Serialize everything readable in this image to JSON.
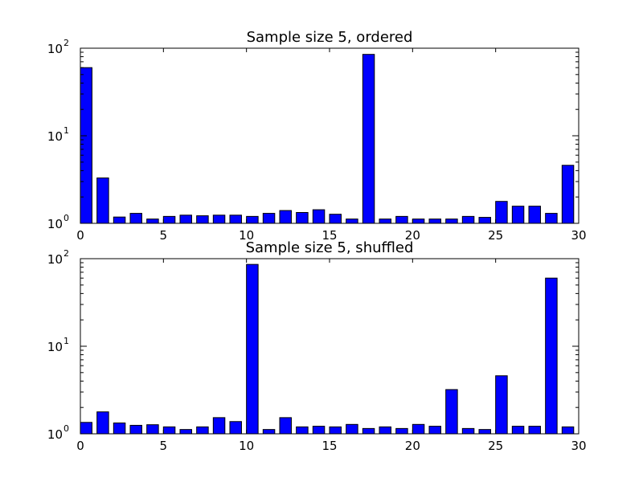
{
  "chart_data": [
    {
      "type": "bar",
      "title": "Sample size 5, ordered",
      "xlabel": "",
      "ylabel": "",
      "yscale": "log",
      "xlim": [
        0,
        30
      ],
      "ylim": [
        1,
        100
      ],
      "xticks": [
        0,
        5,
        10,
        15,
        20,
        25,
        30
      ],
      "yticks": [
        {
          "base": "10",
          "exp": "0",
          "value": 1
        },
        {
          "base": "10",
          "exp": "1",
          "value": 10
        },
        {
          "base": "10",
          "exp": "2",
          "value": 100
        }
      ],
      "bar_width": 0.7,
      "bar_color": "#0000ff",
      "grid": false,
      "x": [
        0,
        1,
        2,
        3,
        4,
        5,
        6,
        7,
        8,
        9,
        10,
        11,
        12,
        13,
        14,
        15,
        16,
        17,
        18,
        19,
        20,
        21,
        22,
        23,
        24,
        25,
        26,
        27,
        28,
        29
      ],
      "values": [
        60,
        3.3,
        1.18,
        1.3,
        1.12,
        1.2,
        1.24,
        1.22,
        1.24,
        1.24,
        1.2,
        1.3,
        1.4,
        1.33,
        1.43,
        1.27,
        1.12,
        85,
        1.12,
        1.2,
        1.12,
        1.12,
        1.12,
        1.2,
        1.17,
        1.78,
        1.57,
        1.57,
        1.3,
        4.6
      ]
    },
    {
      "type": "bar",
      "title": "Sample size 5, shuffled",
      "xlabel": "",
      "ylabel": "",
      "yscale": "log",
      "xlim": [
        0,
        30
      ],
      "ylim": [
        1,
        100
      ],
      "xticks": [
        0,
        5,
        10,
        15,
        20,
        25,
        30
      ],
      "yticks": [
        {
          "base": "10",
          "exp": "0",
          "value": 1
        },
        {
          "base": "10",
          "exp": "1",
          "value": 10
        },
        {
          "base": "10",
          "exp": "2",
          "value": 100
        }
      ],
      "bar_width": 0.7,
      "bar_color": "#0000ff",
      "grid": false,
      "x": [
        0,
        1,
        2,
        3,
        4,
        5,
        6,
        7,
        8,
        9,
        10,
        11,
        12,
        13,
        14,
        15,
        16,
        17,
        18,
        19,
        20,
        21,
        22,
        23,
        24,
        25,
        26,
        27,
        28,
        29
      ],
      "values": [
        1.35,
        1.78,
        1.33,
        1.25,
        1.27,
        1.2,
        1.12,
        1.2,
        1.53,
        1.38,
        86,
        1.12,
        1.53,
        1.2,
        1.22,
        1.2,
        1.28,
        1.15,
        1.2,
        1.15,
        1.28,
        1.22,
        3.2,
        1.15,
        1.12,
        4.6,
        1.22,
        1.22,
        60,
        1.2
      ]
    }
  ]
}
